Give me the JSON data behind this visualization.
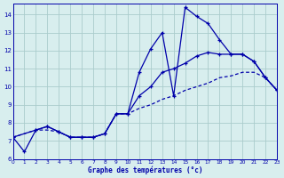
{
  "background_color": "#d8eeee",
  "grid_color": "#aacccc",
  "line_color": "#0000aa",
  "xlabel": "Graphe des températures (°c)",
  "xlim": [
    0,
    23
  ],
  "ylim": [
    6,
    14.6
  ],
  "x_ticks": [
    0,
    1,
    2,
    3,
    4,
    5,
    6,
    7,
    8,
    9,
    10,
    11,
    12,
    13,
    14,
    15,
    16,
    17,
    18,
    19,
    20,
    21,
    22,
    23
  ],
  "y_ticks": [
    6,
    7,
    8,
    9,
    10,
    11,
    12,
    13,
    14
  ],
  "curve1_x": [
    0,
    1,
    2,
    3,
    4,
    5,
    6,
    7,
    8,
    9,
    10,
    11,
    12,
    13,
    14,
    15,
    16,
    17,
    18,
    19,
    20,
    21,
    22,
    23
  ],
  "curve1_y": [
    7.2,
    6.4,
    7.6,
    7.8,
    7.5,
    7.2,
    7.2,
    7.2,
    7.4,
    8.5,
    8.5,
    10.8,
    12.1,
    13.0,
    9.5,
    14.4,
    13.9,
    13.5,
    12.6,
    11.8,
    11.8,
    11.4,
    10.5,
    9.8
  ],
  "curve2_x": [
    0,
    2,
    3,
    4,
    5,
    6,
    7,
    8,
    9,
    10,
    11,
    12,
    13,
    14,
    15,
    16,
    17,
    18,
    19,
    20,
    21,
    22,
    23
  ],
  "curve2_y": [
    7.2,
    7.6,
    7.8,
    7.5,
    7.2,
    7.2,
    7.2,
    7.4,
    8.5,
    8.5,
    9.5,
    10.0,
    10.8,
    11.0,
    11.3,
    11.7,
    11.9,
    11.8,
    11.8,
    11.8,
    11.4,
    10.5,
    9.8
  ],
  "curve3_x": [
    0,
    2,
    3,
    4,
    5,
    6,
    7,
    8,
    9,
    10,
    11,
    12,
    13,
    14,
    15,
    16,
    17,
    18,
    19,
    20,
    21,
    22,
    23
  ],
  "curve3_y": [
    7.2,
    7.6,
    7.6,
    7.5,
    7.2,
    7.2,
    7.2,
    7.4,
    8.5,
    8.5,
    8.8,
    9.0,
    9.3,
    9.5,
    9.8,
    10.0,
    10.2,
    10.5,
    10.6,
    10.8,
    10.8,
    10.5,
    9.8
  ]
}
